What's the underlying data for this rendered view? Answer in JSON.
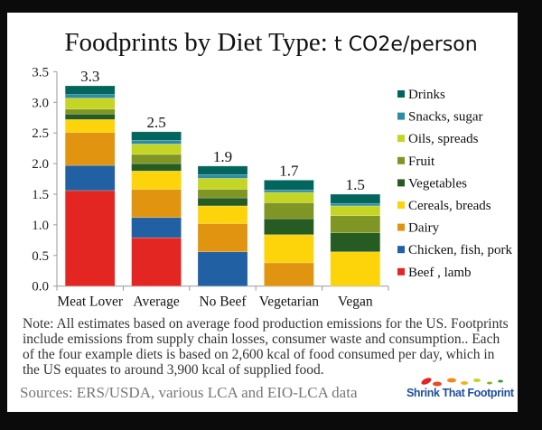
{
  "chart_data": {
    "type": "bar",
    "stacked": true,
    "title": "Foodprints by Diet Type: ",
    "title_unit": "t CO2e/person",
    "categories": [
      "Meat Lover",
      "Average",
      "No Beef",
      "Vegetarian",
      "Vegan"
    ],
    "totals": [
      "3.3",
      "2.5",
      "1.9",
      "1.7",
      "1.5"
    ],
    "ylim": [
      0,
      3.5
    ],
    "yticks": [
      "0.0",
      "0.5",
      "1.0",
      "1.5",
      "2.0",
      "2.5",
      "3.0",
      "3.5"
    ],
    "grid": false,
    "legend_position": "right",
    "series": [
      {
        "name": "Beef , lamb",
        "color": "#e32622",
        "values": [
          1.56,
          0.79,
          0,
          0,
          0
        ]
      },
      {
        "name": "Chicken, fish, pork",
        "color": "#2160a3",
        "values": [
          0.41,
          0.33,
          0.56,
          0,
          0
        ]
      },
      {
        "name": "Dairy",
        "color": "#e0940f",
        "values": [
          0.54,
          0.46,
          0.46,
          0.38,
          0
        ]
      },
      {
        "name": "Cereals, breads",
        "color": "#fdd30a",
        "values": [
          0.21,
          0.3,
          0.29,
          0.46,
          0.56
        ]
      },
      {
        "name": "Vegetables",
        "color": "#265c22",
        "values": [
          0.09,
          0.12,
          0.13,
          0.26,
          0.31
        ]
      },
      {
        "name": "Fruit",
        "color": "#7f9524",
        "values": [
          0.08,
          0.15,
          0.14,
          0.26,
          0.28
        ]
      },
      {
        "name": "Oils, spreads",
        "color": "#c5d523",
        "values": [
          0.18,
          0.17,
          0.18,
          0.17,
          0.16
        ]
      },
      {
        "name": "Snacks, sugar",
        "color": "#2f8ca6",
        "values": [
          0.06,
          0.06,
          0.06,
          0.04,
          0.04
        ]
      },
      {
        "name": "Drinks",
        "color": "#03665c",
        "values": [
          0.14,
          0.14,
          0.14,
          0.16,
          0.15
        ]
      }
    ]
  },
  "note": "Note: All estimates based on average food production emissions for the US. Footprints include emissions from supply chain losses, consumer waste and consumption..  Each of the four example diets is based on 2,600 kcal of food consumed per day, which in the US equates to around 3,900 kcal of supplied food.",
  "sources": "Sources:  ERS/USDA, various LCA and EIO-LCA data",
  "logo_text": "Shrink That Footprint"
}
